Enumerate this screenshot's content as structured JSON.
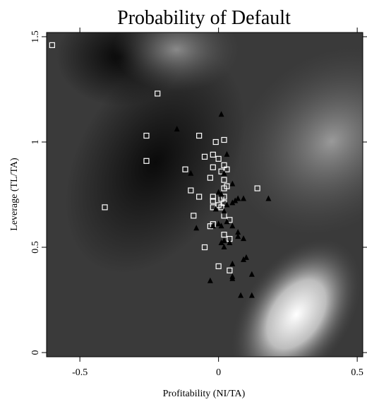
{
  "chart_data": {
    "type": "scatter",
    "title": "Probability of Default",
    "xlabel": "Profitability (NI/TA)",
    "ylabel": "Leverage (TL/TA)",
    "xlim": [
      -0.62,
      0.52
    ],
    "ylim": [
      -0.02,
      1.52
    ],
    "x_ticks": [
      -0.5,
      0,
      0.5
    ],
    "x_tick_labels": [
      "-0.5",
      "0",
      "0.5"
    ],
    "y_ticks": [
      0,
      0.5,
      1,
      1.5
    ],
    "y_tick_labels": [
      "0",
      "0.5",
      "1",
      "1.5"
    ],
    "background": "grayscale density heatmap (light = high probability region near x 0.15–0.3, y 0.1–0.3)",
    "series": [
      {
        "marker": "open-square",
        "color": "#ffffff",
        "points": [
          [
            -0.6,
            1.46
          ],
          [
            -0.22,
            1.23
          ],
          [
            -0.26,
            1.03
          ],
          [
            -0.07,
            1.03
          ],
          [
            -0.26,
            0.91
          ],
          [
            -0.41,
            0.69
          ],
          [
            -0.12,
            0.87
          ],
          [
            -0.1,
            0.77
          ],
          [
            -0.09,
            0.65
          ],
          [
            -0.07,
            0.74
          ],
          [
            -0.05,
            0.93
          ],
          [
            -0.02,
            0.94
          ],
          [
            -0.01,
            1.0
          ],
          [
            0.02,
            1.01
          ],
          [
            0.0,
            0.92
          ],
          [
            0.02,
            0.89
          ],
          [
            0.03,
            0.87
          ],
          [
            -0.02,
            0.88
          ],
          [
            0.01,
            0.86
          ],
          [
            -0.03,
            0.83
          ],
          [
            0.02,
            0.82
          ],
          [
            0.03,
            0.79
          ],
          [
            0.02,
            0.78
          ],
          [
            0.14,
            0.78
          ],
          [
            -0.02,
            0.74
          ],
          [
            0.01,
            0.73
          ],
          [
            0.02,
            0.74
          ],
          [
            -0.02,
            0.72
          ],
          [
            0.0,
            0.7
          ],
          [
            0.02,
            0.71
          ],
          [
            -0.02,
            0.69
          ],
          [
            0.01,
            0.69
          ],
          [
            0.02,
            0.65
          ],
          [
            0.04,
            0.63
          ],
          [
            -0.02,
            0.61
          ],
          [
            -0.03,
            0.6
          ],
          [
            0.02,
            0.56
          ],
          [
            0.04,
            0.54
          ],
          [
            -0.05,
            0.5
          ],
          [
            0.04,
            0.39
          ],
          [
            0.0,
            0.41
          ]
        ]
      },
      {
        "marker": "filled-triangle",
        "color": "#000000",
        "points": [
          [
            0.01,
            1.13
          ],
          [
            -0.15,
            1.06
          ],
          [
            0.03,
            0.94
          ],
          [
            -0.1,
            0.85
          ],
          [
            0.02,
            0.85
          ],
          [
            0.05,
            0.8
          ],
          [
            0.07,
            0.73
          ],
          [
            0.05,
            0.71
          ],
          [
            0.06,
            0.72
          ],
          [
            0.09,
            0.73
          ],
          [
            0.18,
            0.73
          ],
          [
            0.0,
            0.76
          ],
          [
            0.01,
            0.75
          ],
          [
            0.03,
            0.7
          ],
          [
            0.02,
            0.67
          ],
          [
            -0.01,
            0.68
          ],
          [
            0.03,
            0.62
          ],
          [
            0.0,
            0.61
          ],
          [
            -0.02,
            0.6
          ],
          [
            0.01,
            0.6
          ],
          [
            -0.08,
            0.59
          ],
          [
            0.05,
            0.6
          ],
          [
            0.07,
            0.57
          ],
          [
            0.07,
            0.55
          ],
          [
            0.09,
            0.54
          ],
          [
            0.01,
            0.52
          ],
          [
            0.02,
            0.53
          ],
          [
            0.04,
            0.52
          ],
          [
            0.02,
            0.5
          ],
          [
            0.09,
            0.44
          ],
          [
            0.1,
            0.45
          ],
          [
            0.05,
            0.42
          ],
          [
            0.05,
            0.36
          ],
          [
            0.12,
            0.37
          ],
          [
            0.05,
            0.35
          ],
          [
            -0.03,
            0.34
          ],
          [
            0.08,
            0.27
          ],
          [
            0.12,
            0.27
          ]
        ]
      }
    ],
    "grid": false,
    "legend": "none"
  }
}
